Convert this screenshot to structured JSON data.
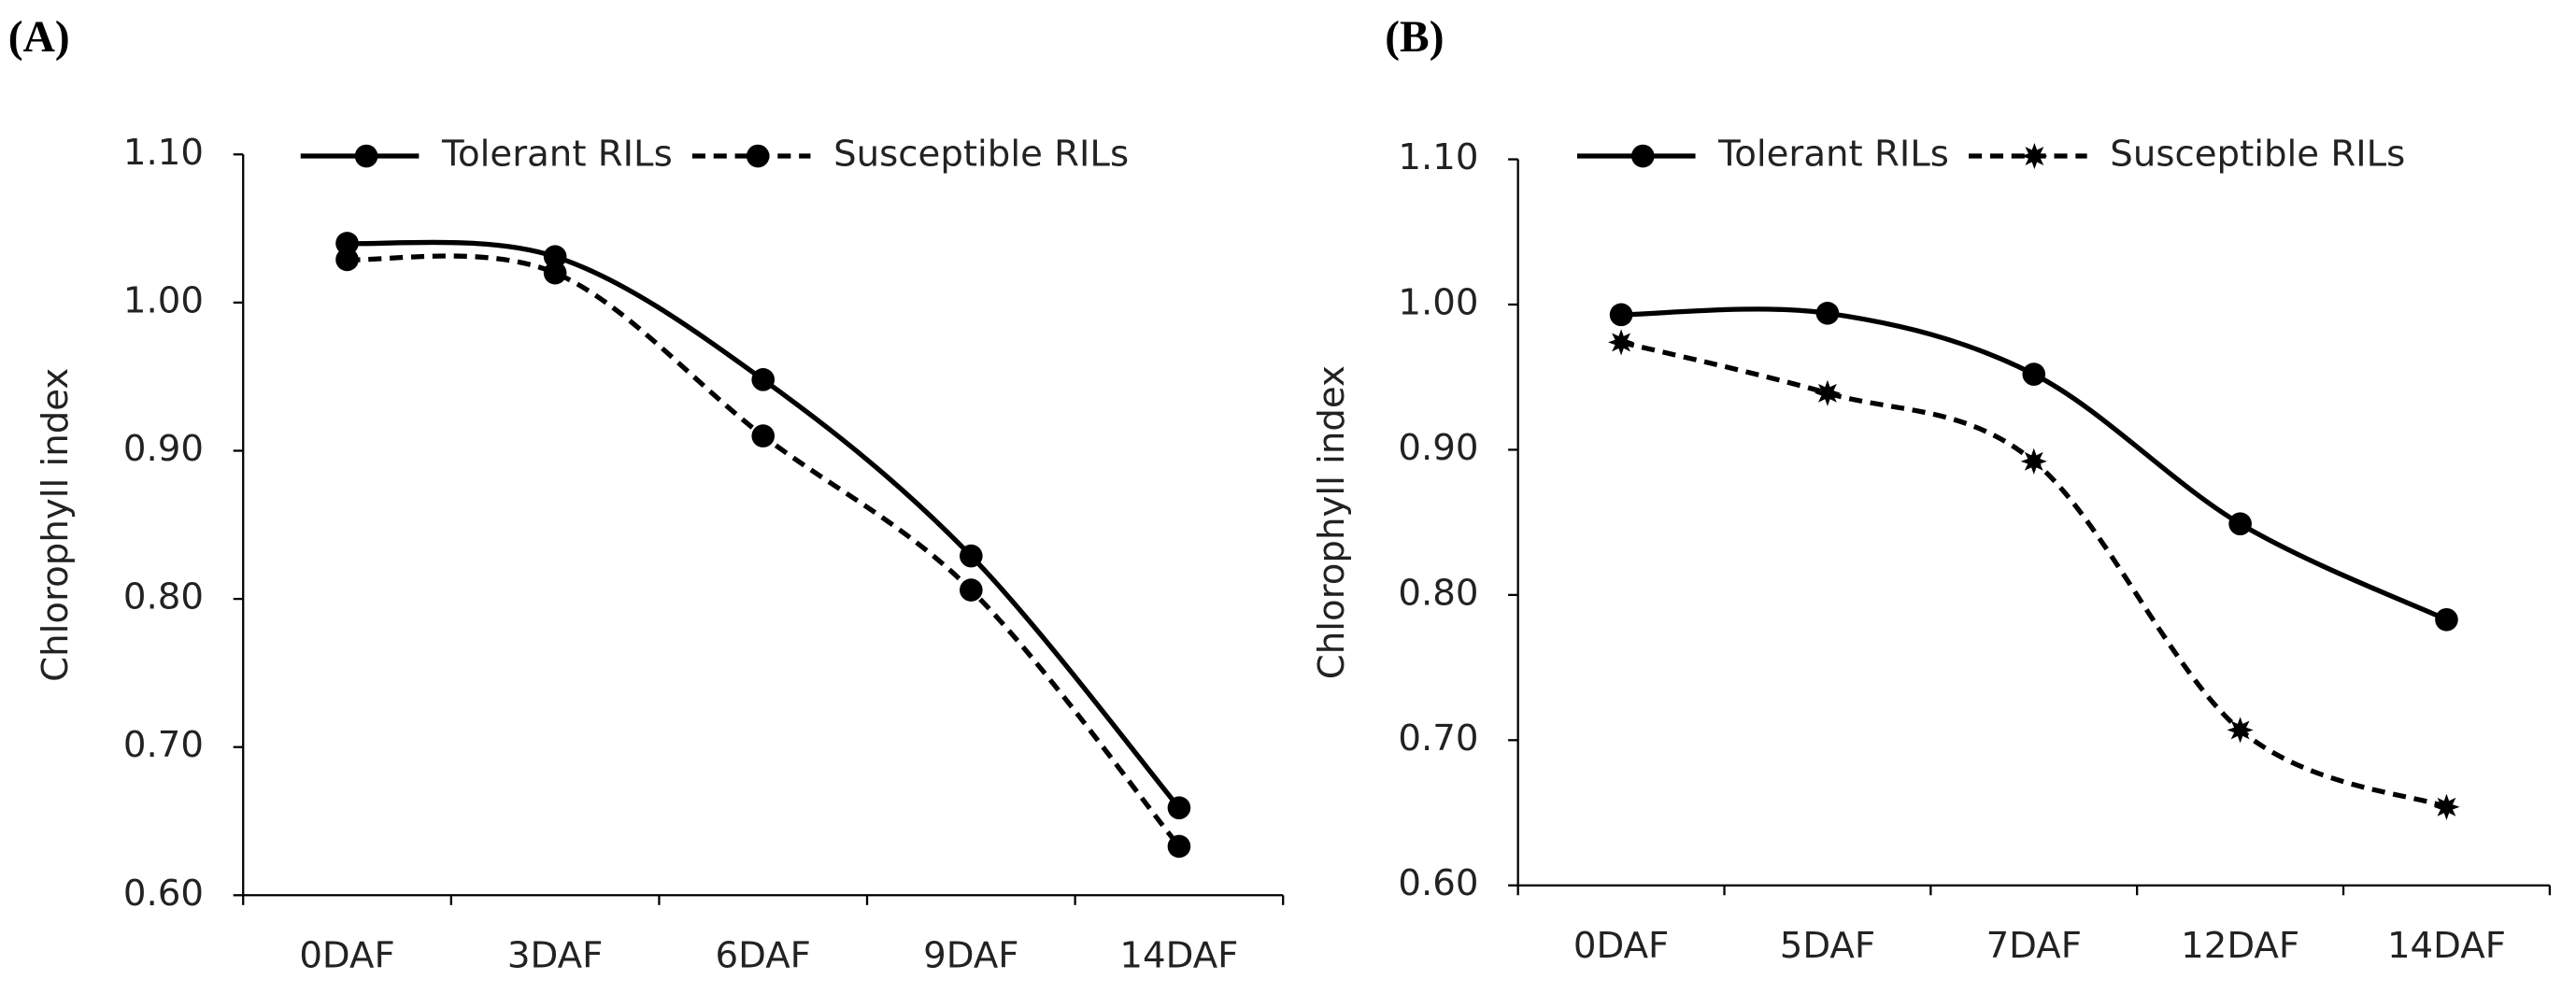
{
  "chart_data": [
    {
      "type": "line",
      "panel_label": "(A)",
      "y_label": "Chlorophyll index",
      "categories": [
        "0DAF",
        "3DAF",
        "6DAF",
        "9DAF",
        "14DAF"
      ],
      "ylim": [
        0.6,
        1.1
      ],
      "yticks": [
        {
          "value": 0.6,
          "label": "0.60"
        },
        {
          "value": 0.7,
          "label": "0.70"
        },
        {
          "value": 0.8,
          "label": "0.80"
        },
        {
          "value": 0.9,
          "label": "0.90"
        },
        {
          "value": 1.0,
          "label": "1.00"
        },
        {
          "value": 1.1,
          "label": "1.10"
        }
      ],
      "series": [
        {
          "name": "Tolerant RILs",
          "color": "#000000",
          "dash": "solid",
          "marker": "circle",
          "values": [
            1.04,
            1.031,
            0.948,
            0.829,
            0.659
          ]
        },
        {
          "name": "Susceptible RILs",
          "color": "#000000",
          "dash": "dashed",
          "marker": "circle",
          "values": [
            1.029,
            1.02,
            0.91,
            0.806,
            0.633
          ]
        }
      ]
    },
    {
      "type": "line",
      "panel_label": "(B)",
      "y_label": "Chlorophyll index",
      "categories": [
        "0DAF",
        "5DAF",
        "7DAF",
        "12DAF",
        "14DAF"
      ],
      "ylim": [
        0.6,
        1.1
      ],
      "yticks": [
        {
          "value": 0.6,
          "label": "0.60"
        },
        {
          "value": 0.7,
          "label": "0.70"
        },
        {
          "value": 0.8,
          "label": "0.80"
        },
        {
          "value": 0.9,
          "label": "0.90"
        },
        {
          "value": 1.0,
          "label": "1.00"
        },
        {
          "value": 1.1,
          "label": "1.10"
        }
      ],
      "series": [
        {
          "name": "Tolerant RILs",
          "color": "#000000",
          "dash": "solid",
          "marker": "circle",
          "values": [
            0.993,
            0.994,
            0.952,
            0.849,
            0.783
          ]
        },
        {
          "name": "Susceptible RILs",
          "color": "#000000",
          "dash": "dashed",
          "marker": "star",
          "values": [
            0.974,
            0.939,
            0.892,
            0.707,
            0.654
          ]
        }
      ]
    }
  ]
}
